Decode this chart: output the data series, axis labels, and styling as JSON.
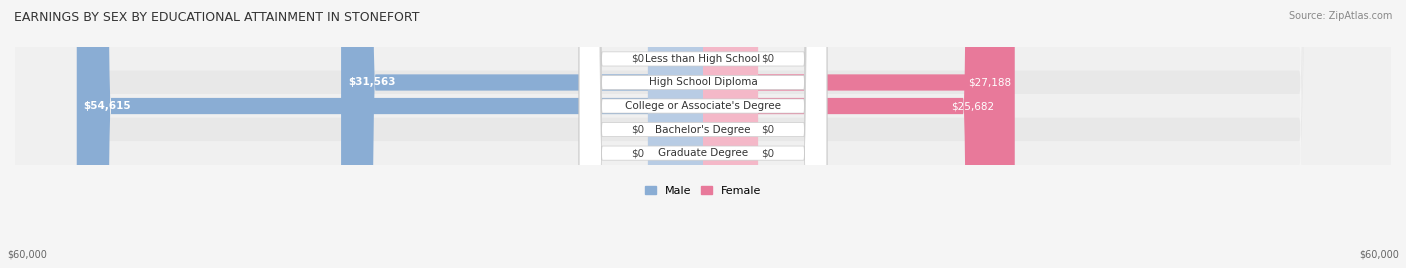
{
  "title": "EARNINGS BY SEX BY EDUCATIONAL ATTAINMENT IN STONEFORT",
  "source": "Source: ZipAtlas.com",
  "categories": [
    "Less than High School",
    "High School Diploma",
    "College or Associate's Degree",
    "Bachelor's Degree",
    "Graduate Degree"
  ],
  "male_values": [
    0,
    31563,
    54615,
    0,
    0
  ],
  "female_values": [
    0,
    27188,
    25682,
    0,
    0
  ],
  "max_value": 60000,
  "male_color": "#8aadd4",
  "female_color": "#e8799a",
  "male_color_light": "#b8cce4",
  "female_color_light": "#f4b8c8",
  "bar_bg_color": "#e8e8e8",
  "row_bg_colors": [
    "#f0f0f0",
    "#e8e8e8"
  ],
  "label_fontsize": 7.5,
  "title_fontsize": 9,
  "axis_label_fontsize": 7,
  "legend_fontsize": 8,
  "male_label": "Male",
  "female_label": "Female",
  "x_label_left": "$60,000",
  "x_label_right": "$60,000"
}
